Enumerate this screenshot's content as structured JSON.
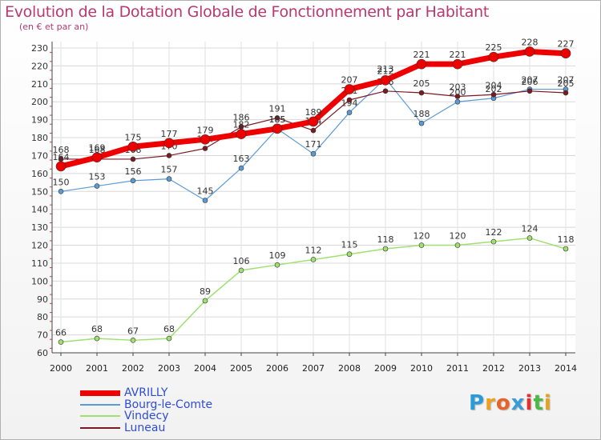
{
  "header": {
    "title": "Evolution de la Dotation Globale de Fonctionnement par Habitant",
    "subtitle": "(en € et par an)"
  },
  "logo": {
    "text": "Proxiti",
    "letters": [
      "P",
      "r",
      "o",
      "x",
      "i",
      "t",
      "i"
    ],
    "colors": [
      "#2a9bd8",
      "#f0a020",
      "#e8632a",
      "#3a9bd8",
      "#e03030",
      "#4cb848",
      "#e8a020"
    ]
  },
  "chart_data": {
    "type": "line",
    "title": "Evolution de la Dotation Globale de Fonctionnement par Habitant",
    "subtitle": "(en € et par an)",
    "xlabel": "",
    "ylabel": "",
    "x": [
      "2000",
      "2001",
      "2002",
      "2003",
      "2004",
      "2005",
      "2006",
      "2007",
      "2008",
      "2009",
      "2010",
      "2011",
      "2012",
      "2013",
      "2014"
    ],
    "ylim": [
      60,
      230
    ],
    "yticks": [
      60,
      70,
      80,
      90,
      100,
      110,
      120,
      130,
      140,
      150,
      160,
      170,
      180,
      190,
      200,
      210,
      220,
      230
    ],
    "grid": true,
    "legend_position": "bottom-left",
    "series": [
      {
        "name": "AVRILLY",
        "color": "#ee0000",
        "values": [
          164,
          169,
          175,
          177,
          179,
          182,
          185,
          189,
          207,
          212,
          221,
          221,
          225,
          228,
          227
        ]
      },
      {
        "name": "Bourg-le-Comte",
        "color": "#5b9bd5",
        "values": [
          150,
          153,
          156,
          157,
          145,
          163,
          185,
          171,
          194,
          213,
          188,
          200,
          202,
          207,
          207
        ]
      },
      {
        "name": "Vindecy",
        "color": "#a0e070",
        "values": [
          66,
          68,
          67,
          68,
          89,
          106,
          109,
          112,
          115,
          118,
          120,
          120,
          122,
          124,
          118
        ]
      },
      {
        "name": "Luneau",
        "color": "#7a1a24",
        "values": [
          168,
          168,
          168,
          170,
          174,
          186,
          191,
          184,
          201,
          206,
          205,
          203,
          204,
          206,
          205
        ]
      }
    ]
  }
}
